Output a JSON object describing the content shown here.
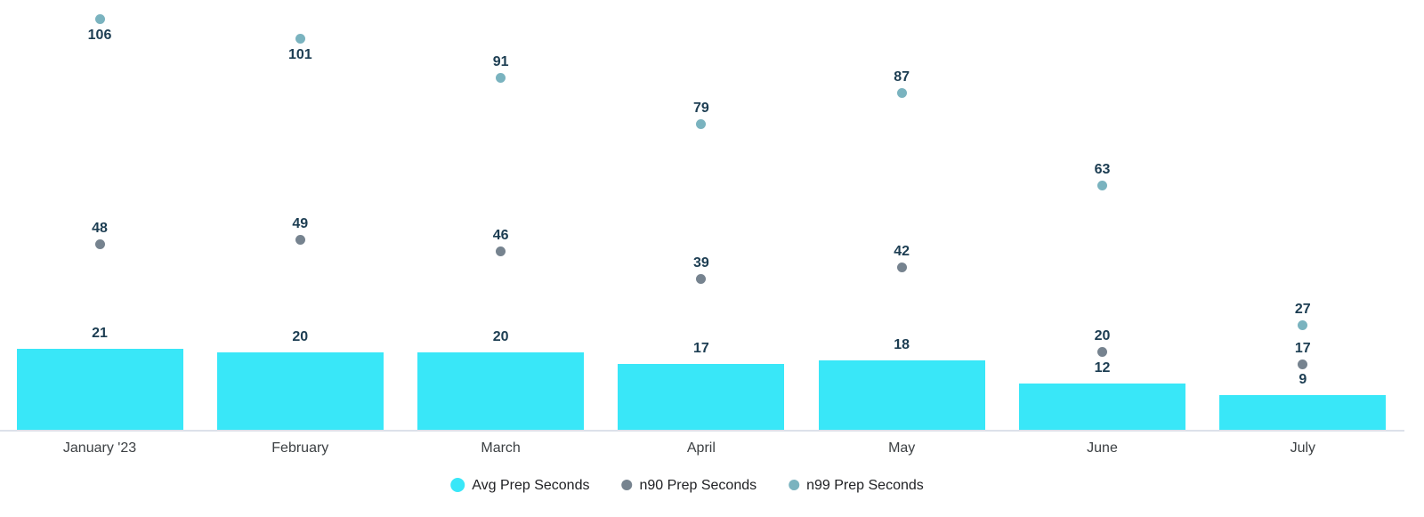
{
  "chart_data": {
    "type": "bar",
    "title": "",
    "xlabel": "",
    "ylabel": "",
    "categories": [
      "January '23",
      "February",
      "March",
      "April",
      "May",
      "June",
      "July"
    ],
    "series": [
      {
        "name": "Avg Prep Seconds",
        "type": "bar",
        "color": "#39e7f8",
        "values": [
          21,
          20,
          20,
          17,
          18,
          12,
          9
        ]
      },
      {
        "name": "n90 Prep Seconds",
        "type": "scatter",
        "color": "#76838f",
        "values": [
          48,
          49,
          46,
          39,
          42,
          20,
          17
        ]
      },
      {
        "name": "n99 Prep Seconds",
        "type": "scatter",
        "color": "#7ab3bf",
        "values": [
          106,
          101,
          91,
          79,
          87,
          63,
          27
        ]
      }
    ],
    "ylim": [
      0,
      111
    ],
    "grid": false,
    "y_axis_visible": false,
    "data_labels": true,
    "data_label_color": "#1c3d52",
    "axis_line_color": "#dde1ea",
    "legend_position": "bottom"
  }
}
